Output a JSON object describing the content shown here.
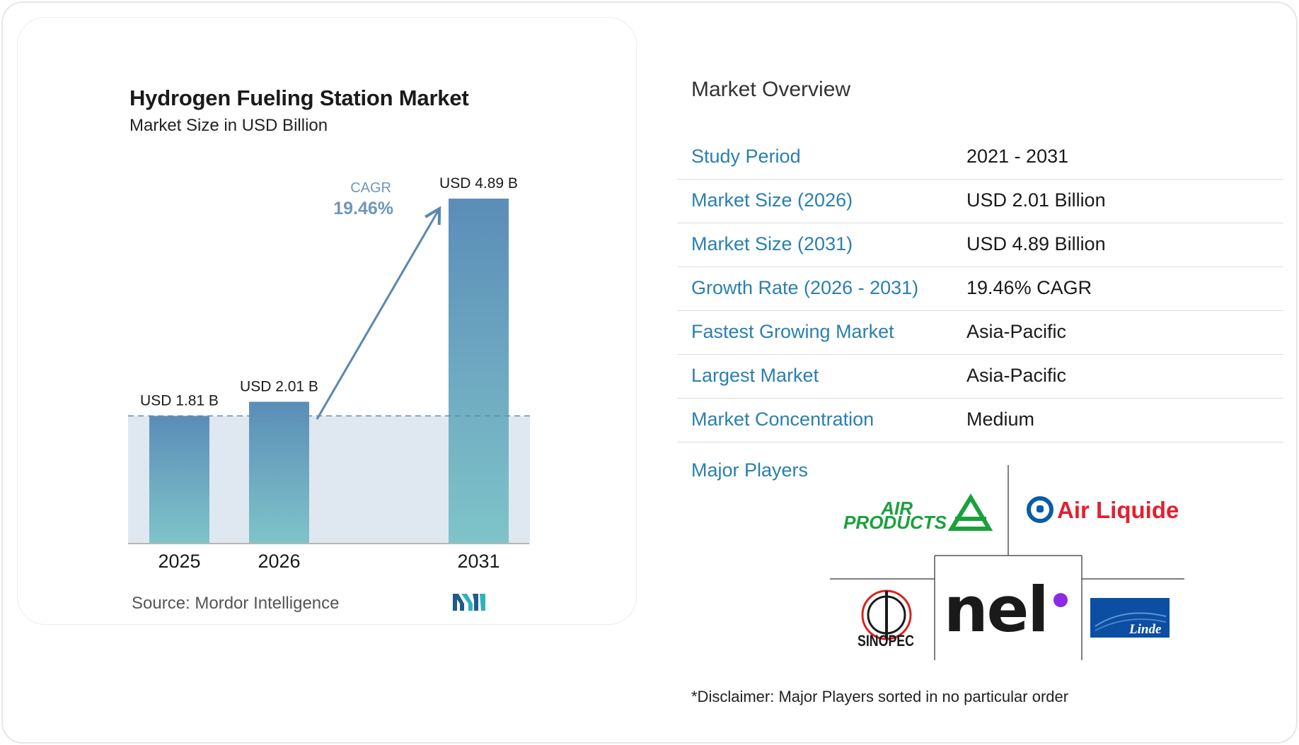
{
  "chart": {
    "title": "Hydrogen Fueling Station Market",
    "subtitle": "Market Size in USD Billion",
    "source": "Source: Mordor Intelligence",
    "cagr_label": "CAGR",
    "cagr_value": "19.46%"
  },
  "chart_data": {
    "type": "bar",
    "title": "Hydrogen Fueling Station Market",
    "subtitle": "Market Size in USD Billion",
    "categories": [
      "2025",
      "2026",
      "2031"
    ],
    "values": [
      1.81,
      2.01,
      4.89
    ],
    "value_labels": [
      "USD 1.81 B",
      "USD 2.01 B",
      "USD 4.89 B"
    ],
    "ylim": [
      0,
      4.89
    ],
    "grid": false,
    "annotation": {
      "label": "CAGR",
      "value": "19.46%"
    },
    "colors": {
      "bar_top": "#5b8db8",
      "bar_bottom": "#7fc4c9",
      "baseline_fill": "#dfe8f0",
      "arrow": "#5a87ad"
    }
  },
  "overview": {
    "title": "Market Overview",
    "rows": [
      {
        "label": "Study Period",
        "value": "2021 - 2031"
      },
      {
        "label": "Market Size (2026)",
        "value": "USD 2.01 Billion"
      },
      {
        "label": "Market Size (2031)",
        "value": "USD 4.89 Billion"
      },
      {
        "label": "Growth Rate (2026 - 2031)",
        "value": "19.46% CAGR"
      },
      {
        "label": "Fastest Growing Market",
        "value": "Asia-Pacific"
      },
      {
        "label": "Largest Market",
        "value": "Asia-Pacific"
      },
      {
        "label": "Market Concentration",
        "value": "Medium"
      }
    ]
  },
  "players": {
    "label": "Major Players",
    "logos": [
      {
        "name": "air-products-logo",
        "text_top": "AIR",
        "text_bottom": "PRODUCTS",
        "color": "#1aa03c"
      },
      {
        "name": "air-liquide-logo",
        "text": "Air Liquide",
        "color": "#e2202f",
        "accent": "#0a5ca8"
      },
      {
        "name": "nel-logo",
        "text": "nel",
        "color": "#1a1a1a",
        "accent": "#8b2be2"
      },
      {
        "name": "sinopec-logo",
        "text": "SINOPEC",
        "color": "#1a1a1a",
        "accent": "#d8231c"
      },
      {
        "name": "linde-logo",
        "text": "Linde",
        "color": "#ffffff",
        "accent": "#0c4ea2"
      }
    ],
    "disclaimer": "*Disclaimer: Major Players sorted in no particular order"
  }
}
